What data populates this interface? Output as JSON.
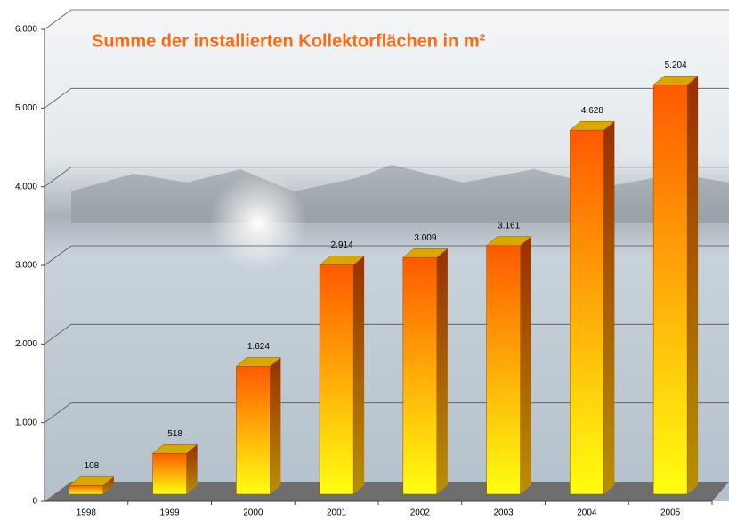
{
  "chart_data": {
    "type": "bar3d",
    "title": "Summe der installierten Kollektorflächen in m²",
    "categories": [
      "1998",
      "1999",
      "2000",
      "2001",
      "2002",
      "2003",
      "2004",
      "2005"
    ],
    "values": [
      108,
      518,
      1624,
      2914,
      3009,
      3161,
      4628,
      5204
    ],
    "value_labels": [
      "108",
      "518",
      "1.624",
      "2.914",
      "3.009",
      "3.161",
      "4.628",
      "5.204"
    ],
    "ylim": [
      0,
      6000
    ],
    "yticks": [
      0,
      {
        "value": 1000,
        "label": "1.000"
      },
      {
        "value": 2000,
        "label": "2.000"
      },
      {
        "value": 3000,
        "label": "3.000"
      },
      {
        "value": 4000,
        "label": "4.000"
      },
      {
        "value": 5000,
        "label": "5.000"
      },
      {
        "value": 6000,
        "label": "6.000"
      }
    ],
    "grid": true
  }
}
